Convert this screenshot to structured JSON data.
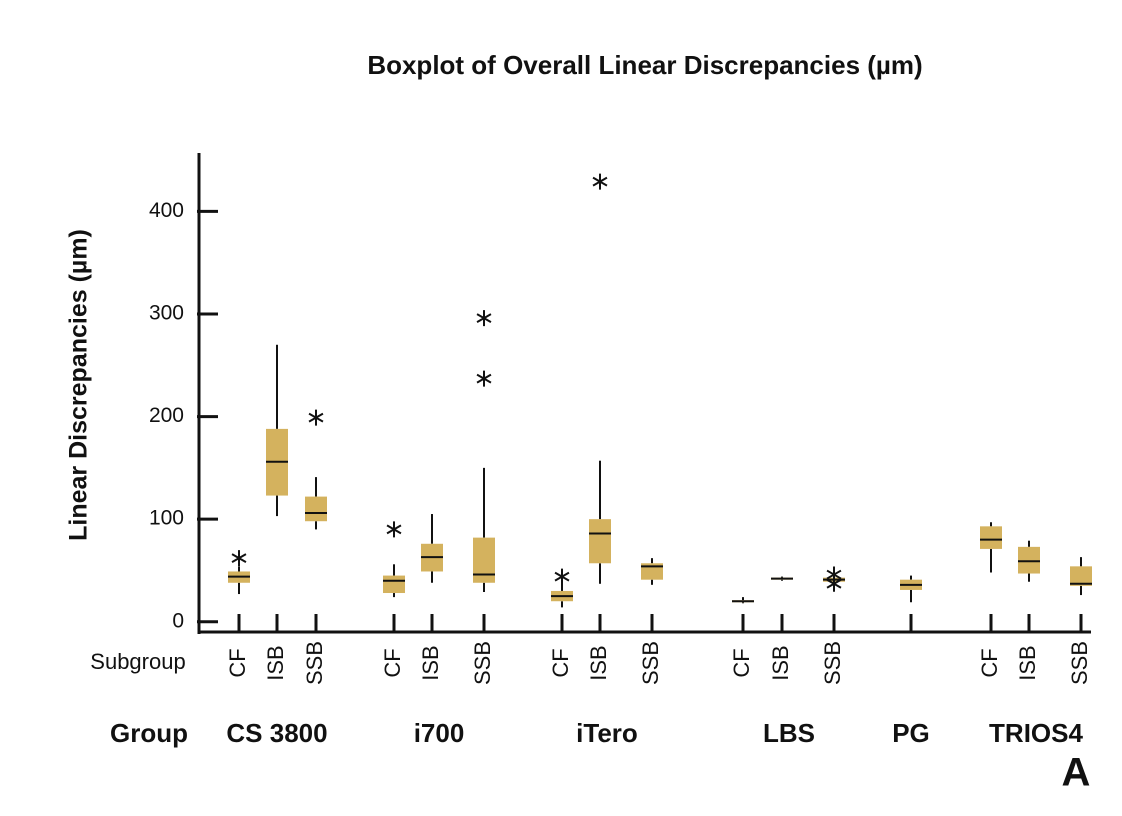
{
  "chart_data": {
    "type": "boxplot",
    "title": "Boxplot of Overall Linear Discrepancies (µm)",
    "y_label": "Linear Discrepancies (µm)",
    "subgroup_axis_label": "Subgroup",
    "group_axis_label": "Group",
    "panel_label": "A",
    "color": "#d4b25e",
    "ylim": [
      -10,
      455
    ],
    "yticks": [
      0,
      100,
      200,
      300,
      400
    ],
    "groups": [
      {
        "name": "CS 3800",
        "subgroups": [
          {
            "name": "CF",
            "whisker_low": 27,
            "q1": 38,
            "median": 44,
            "q3": 49,
            "whisker_high": 54,
            "outliers": [
              62
            ]
          },
          {
            "name": "ISB",
            "whisker_low": 103,
            "q1": 123,
            "median": 156,
            "q3": 188,
            "whisker_high": 270,
            "outliers": []
          },
          {
            "name": "SSB",
            "whisker_low": 90,
            "q1": 98,
            "median": 106,
            "q3": 122,
            "whisker_high": 141,
            "outliers": [
              199
            ]
          }
        ]
      },
      {
        "name": "i700",
        "subgroups": [
          {
            "name": "CF",
            "whisker_low": 24,
            "q1": 28,
            "median": 40,
            "q3": 45,
            "whisker_high": 56,
            "outliers": [
              90
            ]
          },
          {
            "name": "ISB",
            "whisker_low": 38,
            "q1": 49,
            "median": 63,
            "q3": 76,
            "whisker_high": 105,
            "outliers": []
          },
          {
            "name": "SSB",
            "whisker_low": 29,
            "q1": 38,
            "median": 46,
            "q3": 82,
            "whisker_high": 150,
            "outliers": [
              237,
              296
            ]
          }
        ]
      },
      {
        "name": "iTero",
        "subgroups": [
          {
            "name": "CF",
            "whisker_low": 14,
            "q1": 20,
            "median": 25,
            "q3": 30,
            "whisker_high": 37,
            "outliers": [
              44
            ]
          },
          {
            "name": "ISB",
            "whisker_low": 37,
            "q1": 57,
            "median": 86,
            "q3": 100,
            "whisker_high": 157,
            "outliers": [
              429
            ]
          },
          {
            "name": "SSB",
            "whisker_low": 36,
            "q1": 41,
            "median": 54,
            "q3": 57,
            "whisker_high": 62,
            "outliers": []
          }
        ]
      },
      {
        "name": "LBS",
        "subgroups": [
          {
            "name": "CF",
            "whisker_low": 18,
            "q1": 19,
            "median": 20,
            "q3": 21,
            "whisker_high": 24,
            "outliers": []
          },
          {
            "name": "ISB",
            "whisker_low": 40,
            "q1": 41,
            "median": 42,
            "q3": 43,
            "whisker_high": 44,
            "outliers": []
          },
          {
            "name": "SSB",
            "whisker_low": 39,
            "q1": 39,
            "median": 41,
            "q3": 43,
            "whisker_high": 43,
            "outliers": [
              46,
              37
            ]
          }
        ]
      },
      {
        "name": "PG",
        "subgroups": [
          {
            "name": null,
            "whisker_low": 19,
            "q1": 31,
            "median": 36,
            "q3": 41,
            "whisker_high": 45,
            "outliers": []
          }
        ]
      },
      {
        "name": "TRIOS4",
        "subgroups": [
          {
            "name": "CF",
            "whisker_low": 48,
            "q1": 71,
            "median": 80,
            "q3": 93,
            "whisker_high": 97,
            "outliers": []
          },
          {
            "name": "ISB",
            "whisker_low": 39,
            "q1": 47,
            "median": 59,
            "q3": 73,
            "whisker_high": 79,
            "outliers": []
          },
          {
            "name": "SSB",
            "whisker_low": 26,
            "q1": 35,
            "median": 37,
            "q3": 54,
            "whisker_high": 63,
            "outliers": []
          }
        ]
      }
    ]
  }
}
